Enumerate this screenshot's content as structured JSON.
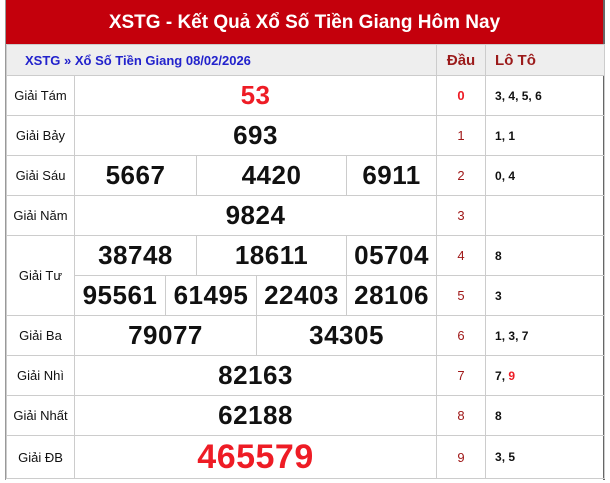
{
  "title": "XSTG - Kết Quả Xổ Số Tiền Giang Hôm Nay",
  "header": {
    "breadcrumb": "XSTG » Xổ Số Tiền Giang 08/02/2026",
    "dau": "Đầu",
    "loto": "Lô Tô"
  },
  "prizes": {
    "tam": {
      "label": "Giải Tám",
      "values": [
        "53"
      ]
    },
    "bay": {
      "label": "Giải Bảy",
      "values": [
        "693"
      ]
    },
    "sau": {
      "label": "Giải Sáu",
      "values": [
        "5667",
        "4420",
        "6911"
      ]
    },
    "nam": {
      "label": "Giải Năm",
      "values": [
        "9824"
      ]
    },
    "tu": {
      "label": "Giải Tư",
      "values": [
        "38748",
        "18611",
        "05704",
        "95561",
        "61495",
        "22403",
        "28106"
      ]
    },
    "ba": {
      "label": "Giải Ba",
      "values": [
        "79077",
        "34305"
      ]
    },
    "nhi": {
      "label": "Giải Nhì",
      "values": [
        "82163"
      ]
    },
    "nhat": {
      "label": "Giải Nhất",
      "values": [
        "62188"
      ]
    },
    "db": {
      "label": "Giải ĐB",
      "values": [
        "465579"
      ]
    }
  },
  "loto": [
    {
      "dau": "0",
      "tail": "3, 4, 5, 6"
    },
    {
      "dau": "1",
      "tail": "1, 1"
    },
    {
      "dau": "2",
      "tail": "0, 4"
    },
    {
      "dau": "3",
      "tail": ""
    },
    {
      "dau": "4",
      "tail": "8"
    },
    {
      "dau": "5",
      "tail": "3"
    },
    {
      "dau": "6",
      "tail": "1, 3, 7"
    },
    {
      "dau": "7",
      "tail": "7, ",
      "tail_highlight": "9"
    },
    {
      "dau": "8",
      "tail": "8"
    },
    {
      "dau": "9",
      "tail": "3, 5"
    }
  ],
  "colors": {
    "title_bg": "#c4000c",
    "highlight": "#ee1c25",
    "breadcrumb": "#2222cc"
  }
}
